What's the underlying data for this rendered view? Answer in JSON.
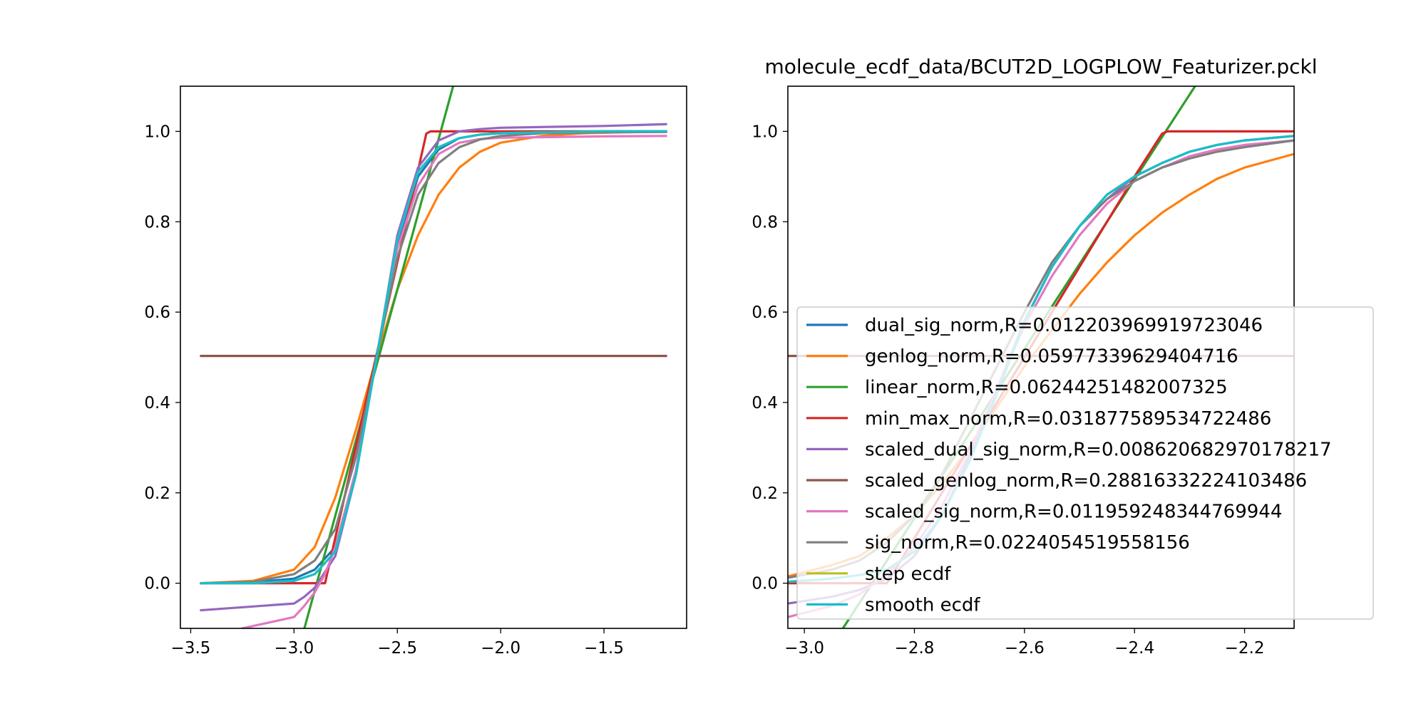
{
  "figure_title": "molecule_ecdf_data/BCUT2D_LOGPLOW_Featurizer.pckl",
  "chart_data": [
    {
      "type": "line",
      "title": "",
      "xlabel": "",
      "ylabel": "",
      "xlim": [
        -3.55,
        -1.1
      ],
      "ylim": [
        -0.1,
        1.1
      ],
      "xticks": [
        -3.5,
        -3.0,
        -2.5,
        -2.0,
        -1.5
      ],
      "xtick_labels": [
        "−3.5",
        "−3.0",
        "−2.5",
        "−2.0",
        "−1.5"
      ],
      "yticks": [
        0.0,
        0.2,
        0.4,
        0.6,
        0.8,
        1.0
      ],
      "ytick_labels": [
        "0.0",
        "0.2",
        "0.4",
        "0.6",
        "0.8",
        "1.0"
      ],
      "grid": false,
      "legend": false,
      "series": [
        {
          "name": "dual_sig_norm,R=0.012203969919723046",
          "color": "#1f77b4",
          "x": [
            -3.45,
            -3.2,
            -3.0,
            -2.9,
            -2.8,
            -2.7,
            -2.6,
            -2.5,
            -2.4,
            -2.3,
            -2.2,
            -2.1,
            -2.0,
            -1.8,
            -1.5,
            -1.2
          ],
          "y": [
            0.0,
            0.002,
            0.01,
            0.03,
            0.08,
            0.25,
            0.5,
            0.75,
            0.9,
            0.96,
            0.985,
            0.993,
            0.996,
            0.998,
            1.0,
            1.0
          ]
        },
        {
          "name": "genlog_norm,R=0.05977339629404716",
          "color": "#ff7f0e",
          "x": [
            -3.45,
            -3.2,
            -3.0,
            -2.9,
            -2.8,
            -2.7,
            -2.6,
            -2.5,
            -2.4,
            -2.3,
            -2.2,
            -2.1,
            -2.0,
            -1.8,
            -1.6,
            -1.4,
            -1.2
          ],
          "y": [
            0.0,
            0.005,
            0.03,
            0.08,
            0.19,
            0.34,
            0.5,
            0.65,
            0.77,
            0.86,
            0.92,
            0.955,
            0.975,
            0.99,
            0.996,
            0.998,
            0.999
          ]
        },
        {
          "name": "linear_norm,R=0.06244251482007325",
          "color": "#2ca02c",
          "x": [
            -2.95,
            -2.23
          ],
          "y": [
            -0.1,
            1.1
          ]
        },
        {
          "name": "min_max_norm,R=0.031877589534722486",
          "color": "#d62728",
          "x": [
            -3.45,
            -2.85,
            -2.36,
            -2.34,
            -1.2
          ],
          "y": [
            0.0,
            0.0,
            0.995,
            1.0,
            1.0
          ]
        },
        {
          "name": "scaled_dual_sig_norm,R=0.008620682970178217",
          "color": "#9467bd",
          "x": [
            -3.45,
            -3.0,
            -2.95,
            -2.9,
            -2.8,
            -2.7,
            -2.6,
            -2.5,
            -2.4,
            -2.3,
            -2.2,
            -2.1,
            -2.0,
            -1.5,
            -1.2
          ],
          "y": [
            -0.06,
            -0.045,
            -0.03,
            -0.01,
            0.06,
            0.24,
            0.5,
            0.77,
            0.92,
            0.98,
            1.0,
            1.005,
            1.008,
            1.012,
            1.016
          ]
        },
        {
          "name": "scaled_genlog_norm,R=0.28816332224103486",
          "color": "#8c564b",
          "x": [
            -3.45,
            -1.2
          ],
          "y": [
            0.503,
            0.503
          ]
        },
        {
          "name": "scaled_sig_norm,R=0.011959248344769944",
          "color": "#e377c2",
          "x": [
            -3.25,
            -3.0,
            -2.95,
            -2.9,
            -2.85,
            -2.8,
            -2.7,
            -2.6,
            -2.5,
            -2.4,
            -2.3,
            -2.2,
            -2.1,
            -2.0,
            -1.5,
            -1.2
          ],
          "y": [
            -0.1,
            -0.075,
            -0.05,
            -0.02,
            0.02,
            0.08,
            0.25,
            0.5,
            0.74,
            0.88,
            0.95,
            0.975,
            0.983,
            0.986,
            0.989,
            0.99
          ]
        },
        {
          "name": "sig_norm,R=0.0224054519558156",
          "color": "#7f7f7f",
          "x": [
            -3.45,
            -3.2,
            -3.0,
            -2.9,
            -2.8,
            -2.7,
            -2.6,
            -2.5,
            -2.4,
            -2.3,
            -2.2,
            -2.1,
            -2.0,
            -1.8,
            -1.5,
            -1.2
          ],
          "y": [
            0.0,
            0.003,
            0.02,
            0.05,
            0.12,
            0.28,
            0.5,
            0.72,
            0.86,
            0.93,
            0.965,
            0.982,
            0.99,
            0.996,
            0.998,
            0.999
          ]
        },
        {
          "name": "step ecdf",
          "color": "#bcbd22",
          "x": [
            -3.45,
            -3.2,
            -3.0,
            -2.9,
            -2.8,
            -2.7,
            -2.6,
            -2.5,
            -2.4,
            -2.3,
            -2.2,
            -2.1,
            -2.0,
            -1.8,
            -1.5,
            -1.2
          ],
          "y": [
            0.0,
            0.0,
            0.005,
            0.02,
            0.07,
            0.24,
            0.5,
            0.76,
            0.91,
            0.965,
            0.985,
            0.993,
            0.996,
            0.998,
            1.0,
            1.0
          ]
        },
        {
          "name": "smooth ecdf",
          "color": "#17becf",
          "x": [
            -3.45,
            -3.2,
            -3.0,
            -2.9,
            -2.8,
            -2.7,
            -2.6,
            -2.5,
            -2.4,
            -2.3,
            -2.2,
            -2.1,
            -2.0,
            -1.8,
            -1.5,
            -1.2
          ],
          "y": [
            0.0,
            0.0,
            0.005,
            0.02,
            0.07,
            0.24,
            0.5,
            0.76,
            0.91,
            0.965,
            0.985,
            0.993,
            0.996,
            0.998,
            1.0,
            1.0
          ]
        }
      ]
    },
    {
      "type": "line",
      "title": "molecule_ecdf_data/BCUT2D_LOGPLOW_Featurizer.pckl",
      "xlabel": "",
      "ylabel": "",
      "xlim": [
        -3.03,
        -2.11
      ],
      "ylim": [
        -0.1,
        1.1
      ],
      "xticks": [
        -3.0,
        -2.8,
        -2.6,
        -2.4,
        -2.2
      ],
      "xtick_labels": [
        "−3.0",
        "−2.8",
        "−2.6",
        "−2.4",
        "−2.2"
      ],
      "yticks": [
        0.0,
        0.2,
        0.4,
        0.6,
        0.8,
        1.0
      ],
      "ytick_labels": [
        "0.0",
        "0.2",
        "0.4",
        "0.6",
        "0.8",
        "1.0"
      ],
      "grid": false,
      "legend": true,
      "legend_position": "lower right",
      "series": [
        {
          "name": "dual_sig_norm,R=0.012203969919723046",
          "color": "#1f77b4",
          "x": [
            -3.03,
            -2.95,
            -2.9,
            -2.85,
            -2.8,
            -2.75,
            -2.7,
            -2.65,
            -2.6,
            -2.55,
            -2.5,
            -2.45,
            -2.4,
            -2.35,
            -2.3,
            -2.25,
            -2.2,
            -2.11
          ],
          "y": [
            0.003,
            0.01,
            0.018,
            0.03,
            0.07,
            0.15,
            0.27,
            0.42,
            0.58,
            0.7,
            0.79,
            0.86,
            0.9,
            0.93,
            0.955,
            0.97,
            0.98,
            0.99
          ]
        },
        {
          "name": "genlog_norm,R=0.05977339629404716",
          "color": "#ff7f0e",
          "x": [
            -3.03,
            -2.95,
            -2.9,
            -2.85,
            -2.8,
            -2.75,
            -2.7,
            -2.65,
            -2.6,
            -2.55,
            -2.5,
            -2.45,
            -2.4,
            -2.35,
            -2.3,
            -2.25,
            -2.2,
            -2.11
          ],
          "y": [
            0.015,
            0.04,
            0.06,
            0.1,
            0.15,
            0.22,
            0.3,
            0.39,
            0.48,
            0.56,
            0.64,
            0.71,
            0.77,
            0.82,
            0.86,
            0.895,
            0.92,
            0.95
          ]
        },
        {
          "name": "linear_norm,R=0.06244251482007325",
          "color": "#2ca02c",
          "x": [
            -2.93,
            -2.29
          ],
          "y": [
            -0.1,
            1.1
          ]
        },
        {
          "name": "min_max_norm,R=0.031877589534722486",
          "color": "#d62728",
          "x": [
            -3.03,
            -2.85,
            -2.8,
            -2.7,
            -2.6,
            -2.5,
            -2.4,
            -2.35,
            -2.34,
            -2.11
          ],
          "y": [
            0.0,
            0.0,
            0.1,
            0.3,
            0.5,
            0.7,
            0.9,
            0.995,
            1.0,
            1.0
          ]
        },
        {
          "name": "scaled_dual_sig_norm,R=0.008620682970178217",
          "color": "#9467bd",
          "x": [
            -3.03,
            -2.95,
            -2.9,
            -2.85,
            -2.8,
            -2.75,
            -2.7,
            -2.65,
            -2.6,
            -2.55,
            -2.5,
            -2.45,
            -2.4,
            -2.35,
            -2.3,
            -2.25,
            -2.2,
            -2.11
          ],
          "y": [
            -0.045,
            -0.03,
            -0.015,
            0.01,
            0.06,
            0.15,
            0.28,
            0.43,
            0.58,
            0.7,
            0.79,
            0.85,
            0.9,
            0.93,
            0.955,
            0.97,
            0.98,
            0.99
          ]
        },
        {
          "name": "scaled_genlog_norm,R=0.28816332224103486",
          "color": "#8c564b",
          "x": [
            -3.03,
            -2.11
          ],
          "y": [
            0.503,
            0.503
          ]
        },
        {
          "name": "scaled_sig_norm,R=0.011959248344769944",
          "color": "#e377c2",
          "x": [
            -3.03,
            -2.95,
            -2.9,
            -2.85,
            -2.8,
            -2.75,
            -2.7,
            -2.65,
            -2.6,
            -2.55,
            -2.5,
            -2.45,
            -2.4,
            -2.35,
            -2.3,
            -2.25,
            -2.2,
            -2.11
          ],
          "y": [
            -0.075,
            -0.05,
            -0.025,
            0.02,
            0.08,
            0.17,
            0.29,
            0.43,
            0.57,
            0.68,
            0.77,
            0.84,
            0.89,
            0.92,
            0.945,
            0.96,
            0.97,
            0.98
          ]
        },
        {
          "name": "sig_norm,R=0.0224054519558156",
          "color": "#7f7f7f",
          "x": [
            -3.03,
            -2.95,
            -2.9,
            -2.85,
            -2.8,
            -2.75,
            -2.7,
            -2.65,
            -2.6,
            -2.55,
            -2.5,
            -2.45,
            -2.4,
            -2.35,
            -2.3,
            -2.25,
            -2.2,
            -2.11
          ],
          "y": [
            0.012,
            0.03,
            0.05,
            0.09,
            0.15,
            0.24,
            0.36,
            0.48,
            0.6,
            0.71,
            0.79,
            0.85,
            0.89,
            0.92,
            0.94,
            0.955,
            0.965,
            0.98
          ]
        },
        {
          "name": "step ecdf",
          "color": "#bcbd22",
          "x": [
            -3.03,
            -2.95,
            -2.9,
            -2.85,
            -2.8,
            -2.75,
            -2.7,
            -2.65,
            -2.6,
            -2.55,
            -2.5,
            -2.45,
            -2.4,
            -2.35,
            -2.3,
            -2.25,
            -2.2,
            -2.11
          ],
          "y": [
            0.003,
            0.01,
            0.018,
            0.03,
            0.07,
            0.15,
            0.27,
            0.42,
            0.58,
            0.7,
            0.79,
            0.86,
            0.9,
            0.93,
            0.955,
            0.97,
            0.98,
            0.99
          ]
        },
        {
          "name": "smooth ecdf",
          "color": "#17becf",
          "x": [
            -3.03,
            -2.95,
            -2.9,
            -2.85,
            -2.8,
            -2.75,
            -2.7,
            -2.65,
            -2.6,
            -2.55,
            -2.5,
            -2.45,
            -2.4,
            -2.35,
            -2.3,
            -2.25,
            -2.2,
            -2.11
          ],
          "y": [
            0.003,
            0.01,
            0.018,
            0.03,
            0.07,
            0.15,
            0.27,
            0.42,
            0.58,
            0.7,
            0.79,
            0.86,
            0.9,
            0.93,
            0.955,
            0.97,
            0.98,
            0.99
          ]
        }
      ]
    }
  ]
}
